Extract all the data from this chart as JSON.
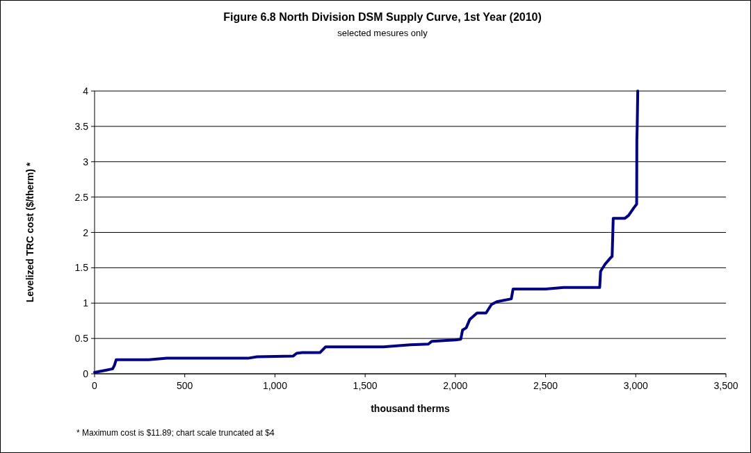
{
  "chart_data": {
    "type": "line",
    "title": "Figure 6.8  North Division DSM Supply Curve, 1st Year (2010)",
    "subtitle": "selected mesures only",
    "xlabel": "thousand therms",
    "ylabel": "Levelized TRC cost ($/therm) *",
    "annotations": [
      "* Maximum cost is $11.89; chart scale truncated at $4"
    ],
    "series": [
      {
        "color": "#000080",
        "x": [
          0,
          40,
          60,
          100,
          110,
          120,
          300,
          400,
          850,
          900,
          1100,
          1120,
          1150,
          1250,
          1280,
          1600,
          1750,
          1850,
          1870,
          2000,
          2030,
          2040,
          2060,
          2080,
          2120,
          2170,
          2200,
          2230,
          2310,
          2320,
          2500,
          2600,
          2800,
          2805,
          2830,
          2860,
          2869,
          2875,
          2940,
          2960,
          2990,
          3005,
          3006,
          3008,
          3011
        ],
        "values": [
          0.02,
          0.04,
          0.05,
          0.07,
          0.12,
          0.2,
          0.2,
          0.22,
          0.22,
          0.24,
          0.25,
          0.29,
          0.3,
          0.3,
          0.38,
          0.38,
          0.41,
          0.42,
          0.46,
          0.48,
          0.49,
          0.62,
          0.65,
          0.77,
          0.86,
          0.86,
          0.98,
          1.02,
          1.06,
          1.2,
          1.2,
          1.22,
          1.22,
          1.45,
          1.55,
          1.64,
          1.66,
          2.2,
          2.2,
          2.24,
          2.35,
          2.4,
          3.3,
          3.5,
          4
        ]
      }
    ],
    "xlim": [
      0,
      3500
    ],
    "xticks": [
      0,
      500,
      {
        "value": 1000,
        "label": "1,000"
      },
      {
        "value": 1500,
        "label": "1,500"
      },
      {
        "value": 2000,
        "label": "2,000"
      },
      {
        "value": 2500,
        "label": "2,500"
      },
      {
        "value": 3000,
        "label": "3,000"
      },
      {
        "value": 3500,
        "label": "3,500"
      }
    ],
    "ylim": [
      0,
      4
    ],
    "yticks": [
      0,
      0.5,
      1,
      1.5,
      2,
      2.5,
      3,
      3.5,
      4
    ],
    "grid": "y",
    "marker": "none",
    "line_style": "solid"
  }
}
